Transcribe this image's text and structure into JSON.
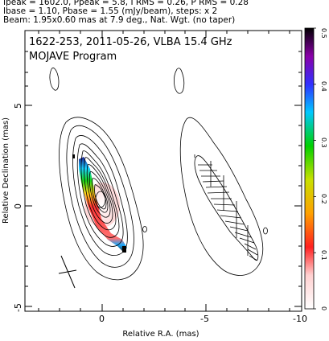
{
  "header": {
    "line1": "Ipeak = 1602.0, Ppeak = 5.8, I RMS = 0.26, P RMS = 0.28",
    "line2": "Ibase = 1.10, Pbase = 1.55 (mJy/beam), steps: x 2",
    "line3": "Beam: 1.95x0.60 mas at 7.9 deg., Nat. Wgt. (no taper)"
  },
  "plot": {
    "title1": "1622-253, 2011-05-26, VLBA 15.4 GHz",
    "title2": "MOJAVE Program",
    "xlabel": "Relative R.A. (mas)",
    "ylabel": "Relative Declination (mas)",
    "xticks": [
      "0",
      "-5",
      "-10"
    ],
    "yticks": [
      "5",
      "0",
      "-5"
    ]
  },
  "colorbar": {
    "ticks": [
      "0.5",
      "0.4",
      "0.3",
      "0.2",
      "0.1",
      "0"
    ],
    "colors": [
      "#000000",
      "#8a00a8",
      "#3030ff",
      "#00c8ff",
      "#00d000",
      "#c8e000",
      "#ffa000",
      "#ff2020",
      "#ffd0d0",
      "#ffffff"
    ]
  }
}
